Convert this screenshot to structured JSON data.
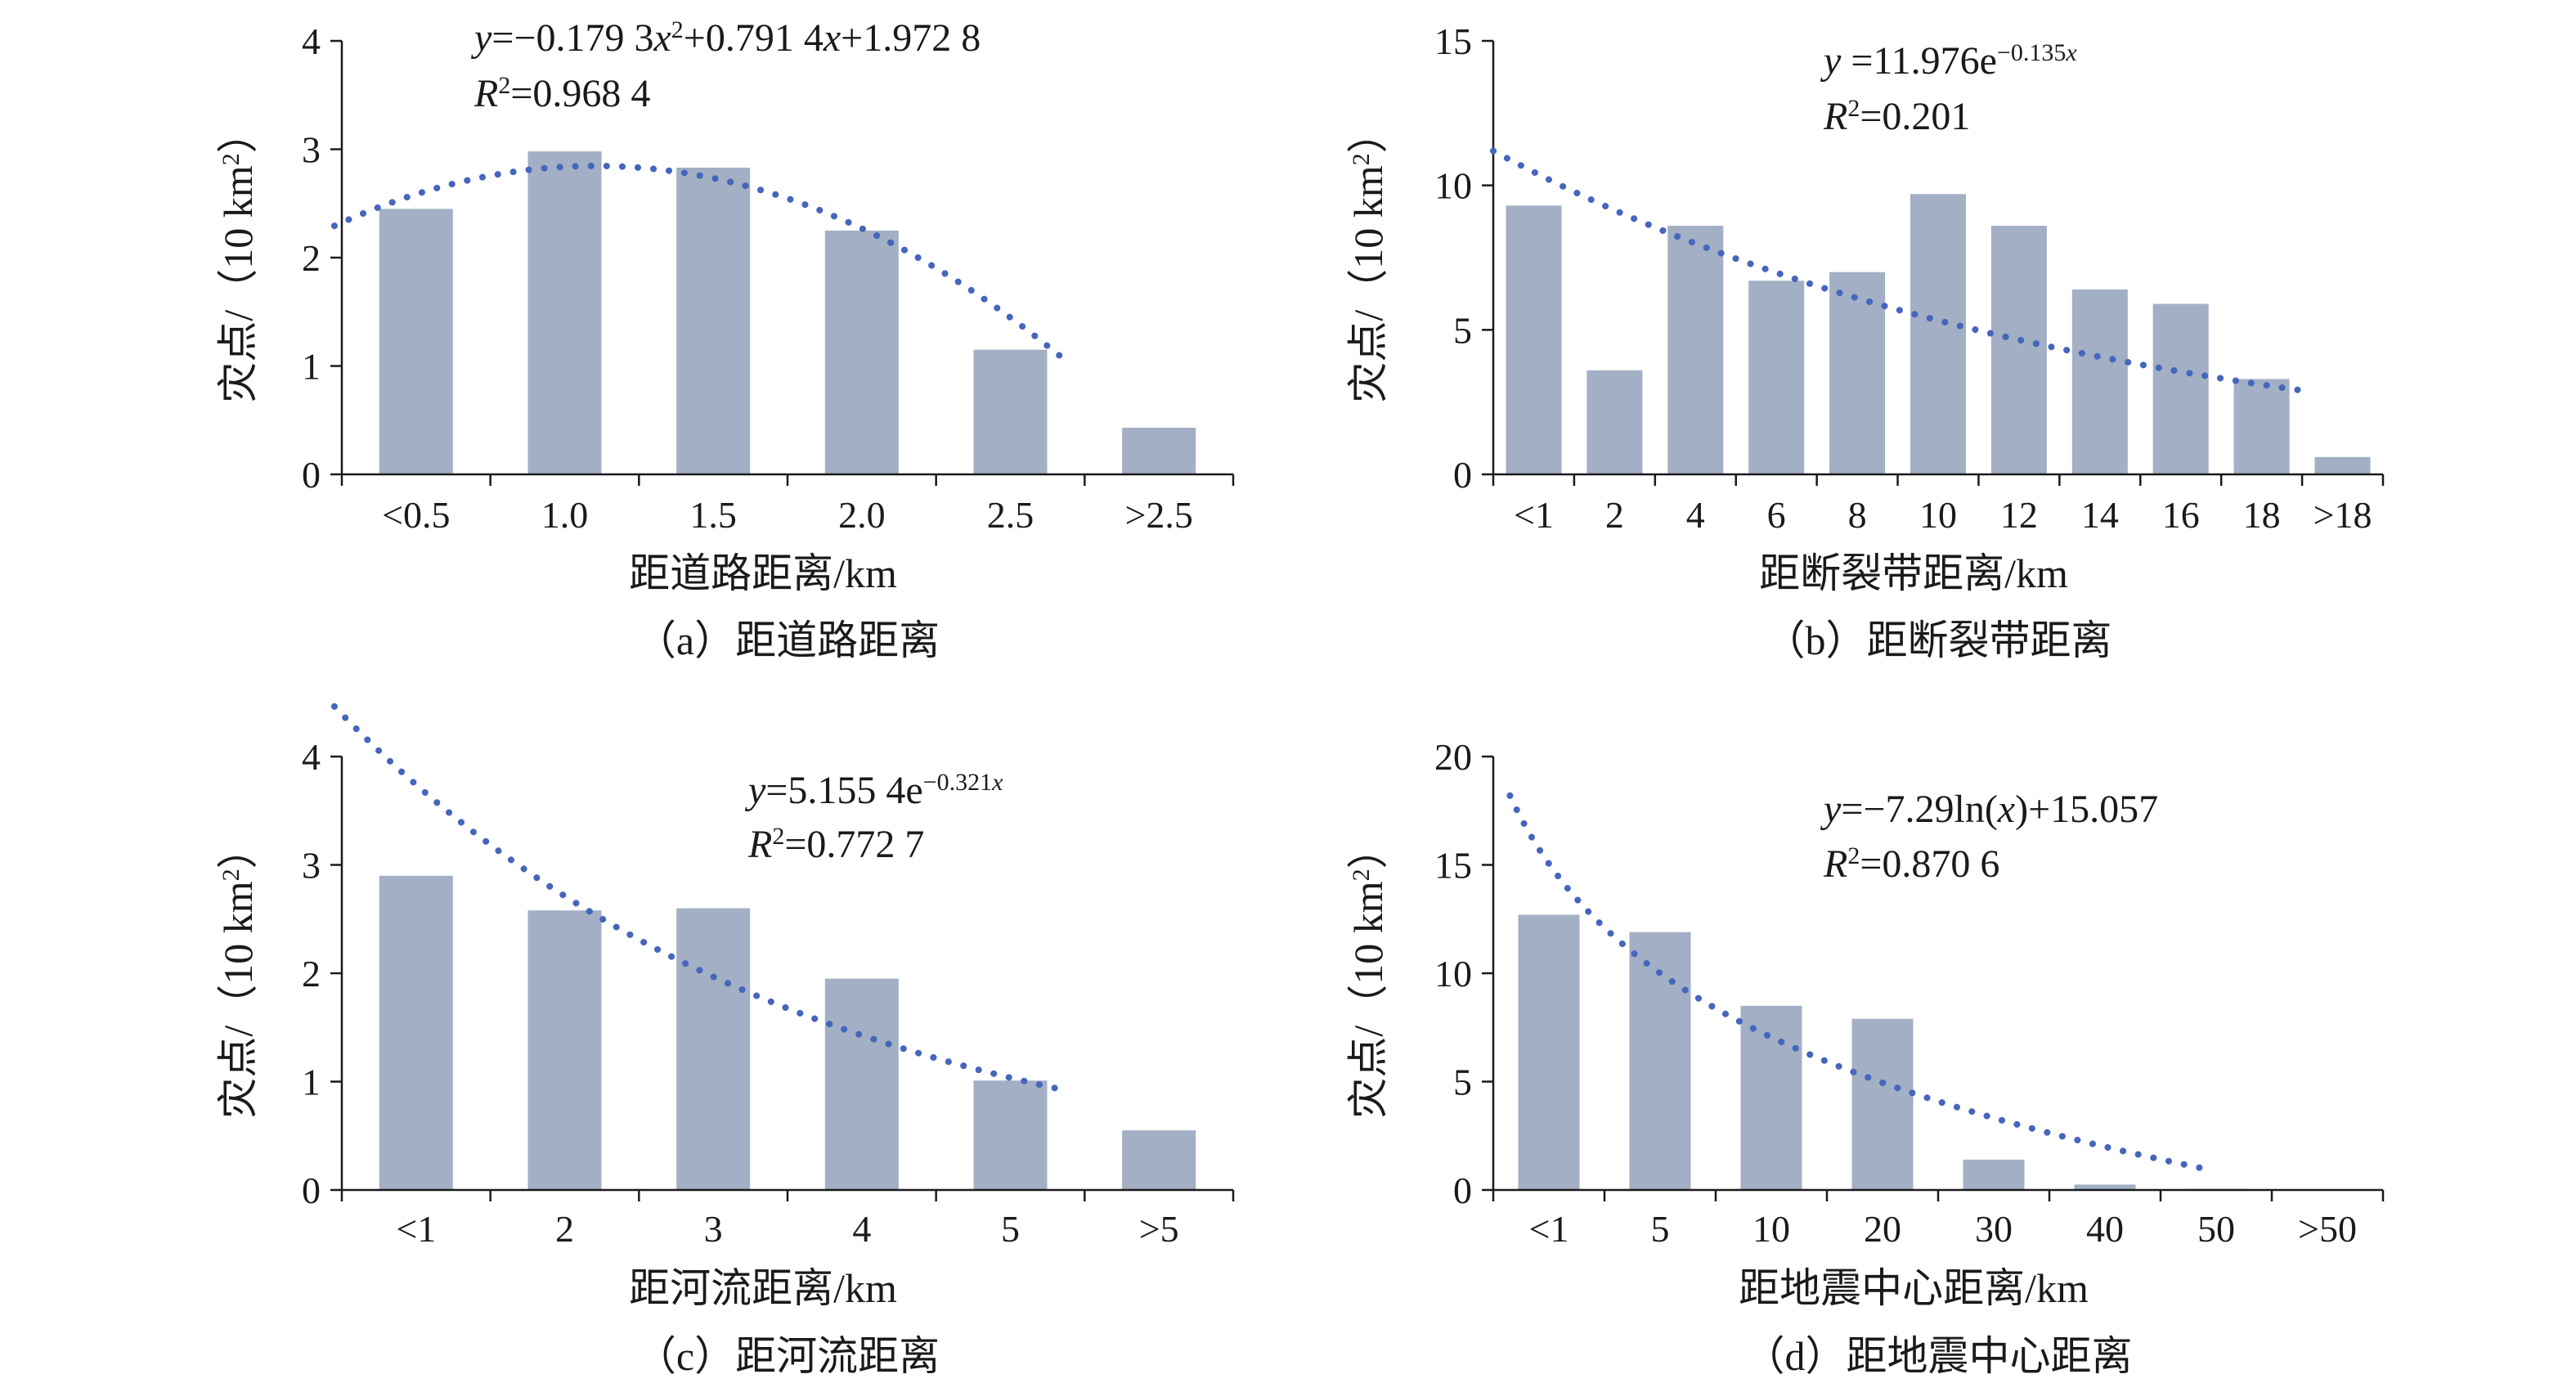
{
  "chart_data": [
    {
      "type": "bar",
      "categories": [
        "<0.5",
        "1.0",
        "1.5",
        "2.0",
        "2.5",
        ">2.5"
      ],
      "values": [
        2.45,
        2.98,
        2.83,
        2.25,
        1.15,
        0.43
      ],
      "ylim": [
        0,
        4
      ],
      "yticks": [
        "0",
        "1",
        "2",
        "3",
        "4"
      ],
      "xlabel": "距道路距离/km",
      "ylabel": "灾点/（10 km²）",
      "caption": "（a）距道路距离",
      "equation": "y=−0.179 3x²+0.791 4x+1.972 8",
      "r2": "R²=0.968 4",
      "trendline": {
        "type": "polynomial",
        "a": -0.1793,
        "b": 0.7914,
        "c": 1.9728,
        "color": "#4466bb"
      }
    },
    {
      "type": "bar",
      "categories": [
        "<1",
        "2",
        "4",
        "6",
        "8",
        "10",
        "12",
        "14",
        "16",
        "18",
        ">18"
      ],
      "values": [
        9.3,
        3.6,
        8.6,
        6.7,
        7.0,
        9.7,
        8.6,
        6.4,
        5.9,
        3.3,
        0.6
      ],
      "ylim": [
        0,
        15
      ],
      "yticks": [
        "0",
        "5",
        "10",
        "15"
      ],
      "xlabel": "距断裂带距离/km",
      "ylabel": "灾点/（10 km²）",
      "caption": "（b）距断裂带距离",
      "equation": "y =11.976e−0.135x",
      "r2": "R²=0.201",
      "trendline": {
        "type": "exponential",
        "a": 11.976,
        "b": -0.135,
        "color": "#4466bb"
      }
    },
    {
      "type": "bar",
      "categories": [
        "<1",
        "2",
        "3",
        "4",
        "5",
        ">5"
      ],
      "values": [
        2.9,
        2.58,
        2.6,
        1.95,
        1.01,
        0.55
      ],
      "ylim": [
        0,
        4
      ],
      "yticks": [
        "0",
        "1",
        "2",
        "3",
        "4"
      ],
      "xlabel": "距河流距离/km",
      "ylabel": "灾点/（10 km²）",
      "caption": "（c）距河流距离",
      "equation": "y=5.155 4e−0.321x",
      "r2": "R²=0.772 7",
      "trendline": {
        "type": "exponential",
        "a": 5.1554,
        "b": -0.321,
        "color": "#4466bb"
      }
    },
    {
      "type": "bar",
      "categories": [
        "<1",
        "5",
        "10",
        "20",
        "30",
        "40",
        "50",
        ">50"
      ],
      "values": [
        12.7,
        11.9,
        8.5,
        7.9,
        1.4,
        0.25,
        0.05,
        0
      ],
      "ylim": [
        0,
        20
      ],
      "yticks": [
        "0",
        "5",
        "10",
        "15",
        "20"
      ],
      "xlabel": "距地震中心距离/km",
      "ylabel": "灾点/（10 km²）",
      "caption": "（d）距地震中心距离",
      "equation": "y=−7.29ln(x)+15.057",
      "r2": "R²=0.870 6",
      "trendline": {
        "type": "logarithmic",
        "a": -7.29,
        "b": 15.057,
        "color": "#4466bb"
      }
    }
  ]
}
